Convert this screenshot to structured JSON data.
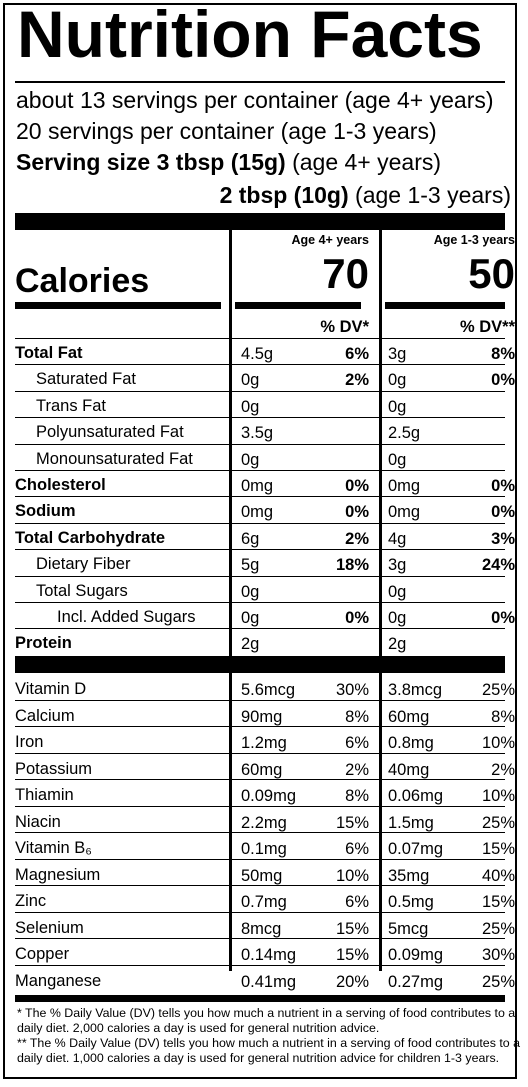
{
  "title": "Nutrition Facts",
  "servings": {
    "line1": "about 13 servings per container (age 4+ years)",
    "line2": "20 servings per container (age 1-3 years)",
    "size1_bold": "Serving size 3 tbsp (15g)",
    "size1_rest": " (age 4+ years)",
    "size2_bold": "2 tbsp (10g)",
    "size2_rest": " (age 1-3 years)"
  },
  "columns": {
    "a": {
      "header": "Age 4+ years",
      "calories": "70",
      "dv_header": "% DV*"
    },
    "b": {
      "header": "Age 1-3 years",
      "calories": "50",
      "dv_header": "% DV**"
    }
  },
  "calories_label": "Calories",
  "nutrients": [
    {
      "name": "Total Fat",
      "bold": true,
      "indent": 0,
      "a_amt": "4.5g",
      "a_dv": "6%",
      "b_amt": "3g",
      "b_dv": "8%"
    },
    {
      "name": "Saturated Fat",
      "bold": false,
      "indent": 1,
      "a_amt": "0g",
      "a_dv": "2%",
      "b_amt": "0g",
      "b_dv": "0%"
    },
    {
      "name": "Trans Fat",
      "bold": false,
      "indent": 1,
      "a_amt": "0g",
      "a_dv": "",
      "b_amt": "0g",
      "b_dv": ""
    },
    {
      "name": "Polyunsaturated Fat",
      "bold": false,
      "indent": 1,
      "a_amt": "3.5g",
      "a_dv": "",
      "b_amt": "2.5g",
      "b_dv": ""
    },
    {
      "name": "Monounsaturated Fat",
      "bold": false,
      "indent": 1,
      "a_amt": "0g",
      "a_dv": "",
      "b_amt": "0g",
      "b_dv": ""
    },
    {
      "name": "Cholesterol",
      "bold": true,
      "indent": 0,
      "a_amt": "0mg",
      "a_dv": "0%",
      "b_amt": "0mg",
      "b_dv": "0%"
    },
    {
      "name": "Sodium",
      "bold": true,
      "indent": 0,
      "a_amt": "0mg",
      "a_dv": "0%",
      "b_amt": "0mg",
      "b_dv": "0%"
    },
    {
      "name": "Total Carbohydrate",
      "bold": true,
      "indent": 0,
      "a_amt": "6g",
      "a_dv": "2%",
      "b_amt": "4g",
      "b_dv": "3%"
    },
    {
      "name": "Dietary Fiber",
      "bold": false,
      "indent": 1,
      "a_amt": "5g",
      "a_dv": "18%",
      "b_amt": "3g",
      "b_dv": "24%"
    },
    {
      "name": "Total Sugars",
      "bold": false,
      "indent": 1,
      "a_amt": "0g",
      "a_dv": "",
      "b_amt": "0g",
      "b_dv": ""
    },
    {
      "name": "Incl. Added Sugars",
      "bold": false,
      "indent": 2,
      "a_amt": "0g",
      "a_dv": "0%",
      "b_amt": "0g",
      "b_dv": "0%"
    },
    {
      "name": "Protein",
      "bold": true,
      "indent": 0,
      "a_amt": "2g",
      "a_dv": "",
      "b_amt": "2g",
      "b_dv": ""
    }
  ],
  "vitamins": [
    {
      "name": "Vitamin D",
      "a_amt": "5.6mcg",
      "a_dv": "30%",
      "b_amt": "3.8mcg",
      "b_dv": "25%"
    },
    {
      "name": "Calcium",
      "a_amt": "90mg",
      "a_dv": "8%",
      "b_amt": "60mg",
      "b_dv": "8%"
    },
    {
      "name": "Iron",
      "a_amt": "1.2mg",
      "a_dv": "6%",
      "b_amt": "0.8mg",
      "b_dv": "10%"
    },
    {
      "name": "Potassium",
      "a_amt": "60mg",
      "a_dv": "2%",
      "b_amt": "40mg",
      "b_dv": "2%"
    },
    {
      "name": "Thiamin",
      "a_amt": "0.09mg",
      "a_dv": "8%",
      "b_amt": "0.06mg",
      "b_dv": "10%"
    },
    {
      "name": "Niacin",
      "a_amt": "2.2mg",
      "a_dv": "15%",
      "b_amt": "1.5mg",
      "b_dv": "25%"
    },
    {
      "name": "Vitamin B₆",
      "a_amt": "0.1mg",
      "a_dv": "6%",
      "b_amt": "0.07mg",
      "b_dv": "15%"
    },
    {
      "name": "Magnesium",
      "a_amt": "50mg",
      "a_dv": "10%",
      "b_amt": "35mg",
      "b_dv": "40%"
    },
    {
      "name": "Zinc",
      "a_amt": "0.7mg",
      "a_dv": "6%",
      "b_amt": "0.5mg",
      "b_dv": "15%"
    },
    {
      "name": "Selenium",
      "a_amt": "8mcg",
      "a_dv": "15%",
      "b_amt": "5mcg",
      "b_dv": "25%"
    },
    {
      "name": "Copper",
      "a_amt": "0.14mg",
      "a_dv": "15%",
      "b_amt": "0.09mg",
      "b_dv": "30%"
    },
    {
      "name": "Manganese",
      "a_amt": "0.41mg",
      "a_dv": "20%",
      "b_amt": "0.27mg",
      "b_dv": "25%"
    }
  ],
  "footnotes": {
    "f1": "* The % Daily Value (DV) tells you how much a nutrient in a serving of food contributes to a daily diet. 2,000 calories a day is used for general nutrition advice.",
    "f2": "** The % Daily Value (DV) tells you how much a nutrient in a serving of food contributes to a daily diet. 1,000 calories a day is used for general nutrition advice for children 1-3 years."
  }
}
